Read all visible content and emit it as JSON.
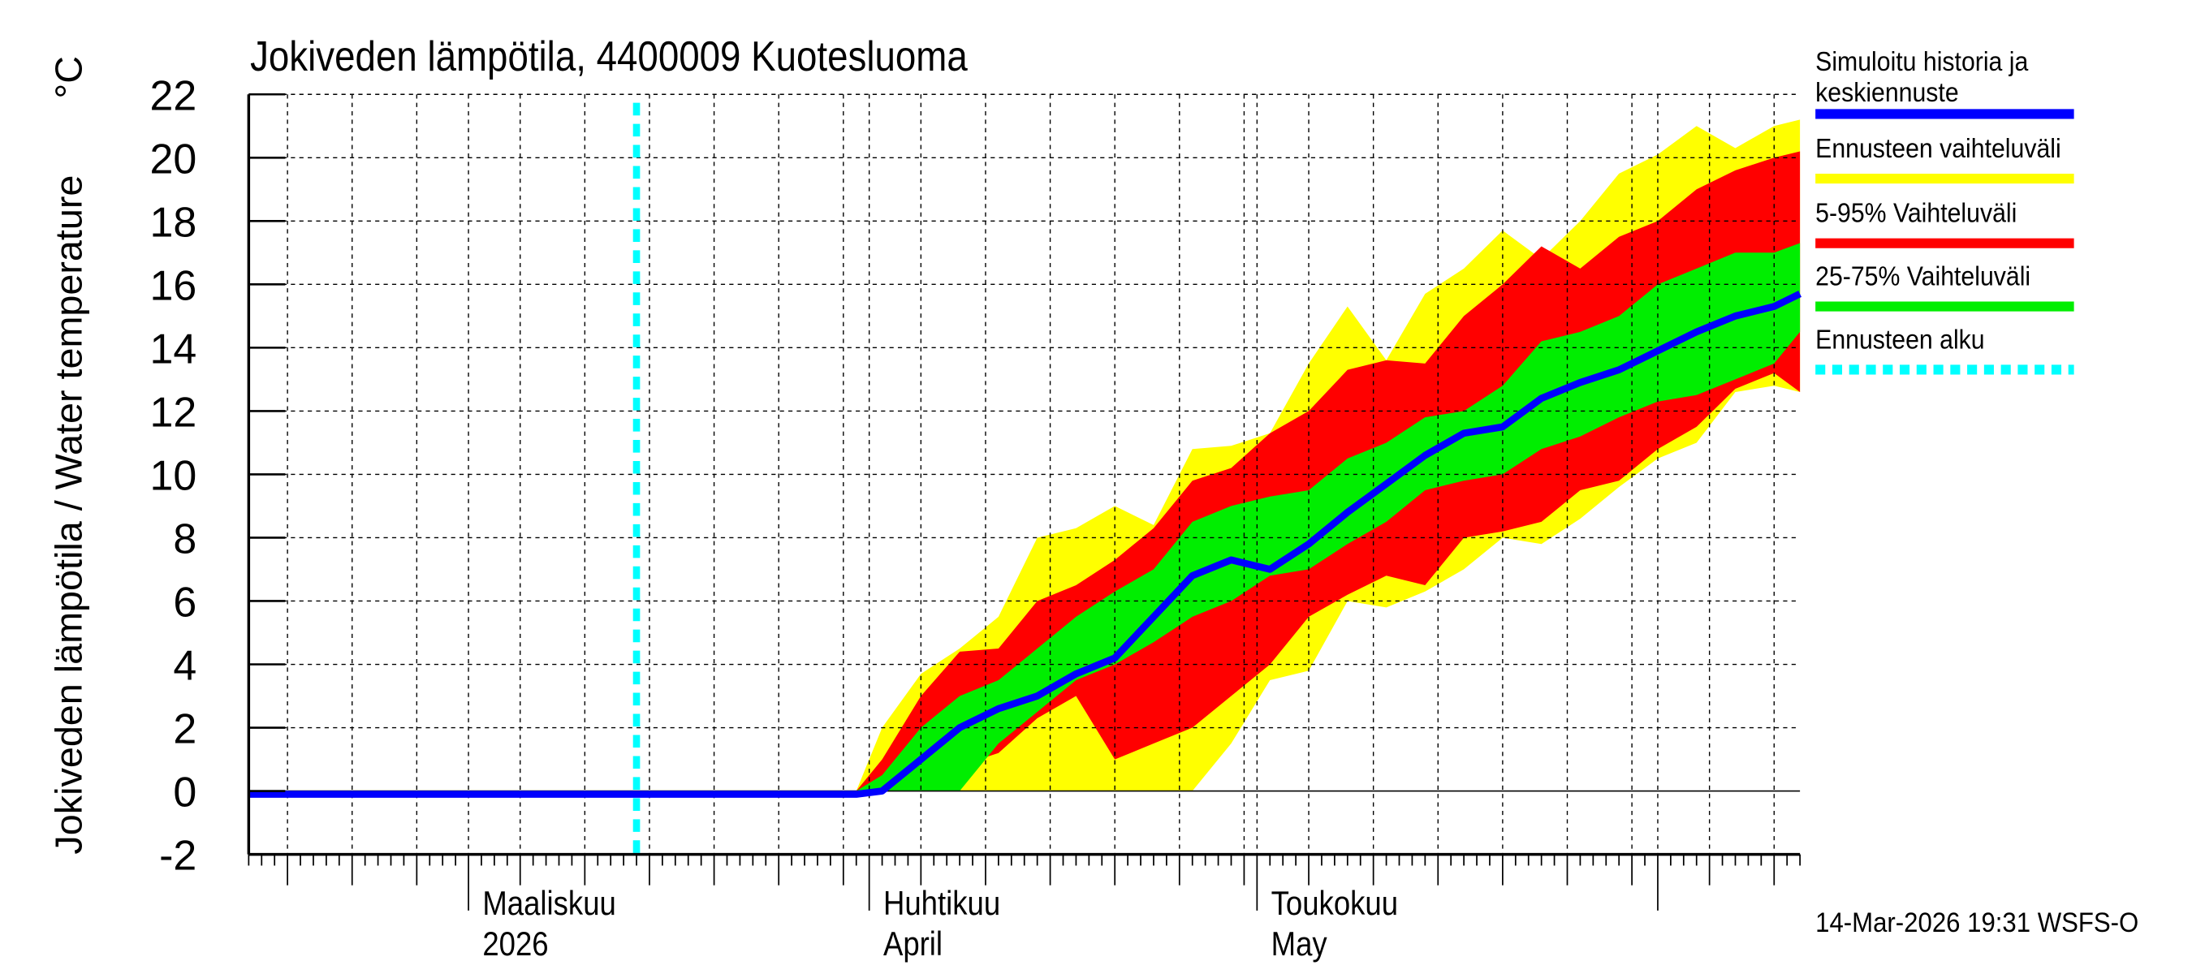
{
  "chart_data": {
    "type": "area",
    "title": "Jokiveden lämpötila, 4400009 Kuotesluoma",
    "ylabel": "Jokiveden lämpötila / Water temperature",
    "yunit": "°C",
    "ylim": [
      -2,
      22
    ],
    "yticks": [
      -2,
      0,
      2,
      4,
      6,
      8,
      10,
      12,
      14,
      16,
      18,
      20,
      22
    ],
    "xlim": [
      "2026-02-12",
      "2026-06-12"
    ],
    "grid": true,
    "legend_position": "right",
    "x_month_labels": [
      {
        "date": "2026-03-01",
        "line1": "Maaliskuu",
        "line2": "2026"
      },
      {
        "date": "2026-04-01",
        "line1": "Huhtikuu",
        "line2": "April"
      },
      {
        "date": "2026-05-01",
        "line1": "Toukokuu",
        "line2": "May"
      }
    ],
    "forecast_start": "2026-03-14",
    "footer": "14-Mar-2026 19:31 WSFS-O",
    "colors": {
      "median": "#0000ff",
      "range": "#ffff00",
      "p5_95": "#ff0000",
      "p25_75": "#00ee00",
      "forecast_start": "#00ffff"
    },
    "legend": [
      {
        "label": "Simuloitu historia ja keskiennuste",
        "color": "#0000ff",
        "style": "solid"
      },
      {
        "label": "Ennusteen vaihteluväli",
        "color": "#ffff00",
        "style": "solid"
      },
      {
        "label": "5-95% Vaihteluväli",
        "color": "#ff0000",
        "style": "solid"
      },
      {
        "label": "25-75% Vaihteluväli",
        "color": "#00ee00",
        "style": "solid"
      },
      {
        "label": "Ennusteen alku",
        "color": "#00ffff",
        "style": "dotted"
      }
    ],
    "x": [
      "2026-03-31",
      "2026-04-02",
      "2026-04-05",
      "2026-04-08",
      "2026-04-11",
      "2026-04-14",
      "2026-04-17",
      "2026-04-20",
      "2026-04-23",
      "2026-04-26",
      "2026-04-29",
      "2026-05-02",
      "2026-05-05",
      "2026-05-08",
      "2026-05-11",
      "2026-05-14",
      "2026-05-17",
      "2026-05-20",
      "2026-05-23",
      "2026-05-26",
      "2026-05-29",
      "2026-06-01",
      "2026-06-04",
      "2026-06-07",
      "2026-06-10",
      "2026-06-12"
    ],
    "range_upper": [
      0,
      2.0,
      3.7,
      4.5,
      5.5,
      8.0,
      8.3,
      9.0,
      8.4,
      10.8,
      10.9,
      11.3,
      13.5,
      15.3,
      13.6,
      15.7,
      16.5,
      17.7,
      16.8,
      18.0,
      19.5,
      20.1,
      21.0,
      20.3,
      21.0,
      21.2
    ],
    "range_lower": [
      0,
      0,
      0,
      0,
      0,
      0,
      0,
      0,
      0,
      0,
      1.5,
      3.5,
      3.8,
      6.0,
      5.8,
      6.3,
      7.0,
      8.0,
      7.8,
      8.6,
      9.6,
      10.5,
      11.0,
      12.6,
      12.8,
      12.6
    ],
    "p95": [
      0,
      1.0,
      3.0,
      4.4,
      4.5,
      6.0,
      6.5,
      7.3,
      8.3,
      9.8,
      10.2,
      11.3,
      12.0,
      13.3,
      13.6,
      13.5,
      15.0,
      16.0,
      17.2,
      16.5,
      17.5,
      18.0,
      19.0,
      19.6,
      20.0,
      20.2
    ],
    "p5": [
      0,
      0,
      0,
      0.8,
      1.2,
      2.3,
      3.0,
      1.0,
      1.5,
      2.0,
      3.0,
      4.0,
      5.5,
      6.2,
      6.8,
      6.5,
      8.0,
      8.2,
      8.5,
      9.5,
      9.8,
      10.8,
      11.5,
      12.7,
      13.2,
      12.6
    ],
    "p75": [
      0,
      0.5,
      2.0,
      3.0,
      3.5,
      4.5,
      5.5,
      6.3,
      7.0,
      8.5,
      9.0,
      9.3,
      9.5,
      10.5,
      11.0,
      11.8,
      12.0,
      12.8,
      14.2,
      14.5,
      15.0,
      16.0,
      16.5,
      17.0,
      17.0,
      17.3
    ],
    "p25": [
      0,
      0,
      0,
      0,
      1.5,
      2.5,
      3.5,
      4.0,
      4.7,
      5.5,
      6.0,
      6.8,
      7.0,
      7.8,
      8.5,
      9.5,
      9.8,
      10.0,
      10.8,
      11.2,
      11.8,
      12.3,
      12.5,
      13.0,
      13.5,
      14.5
    ],
    "median": [
      -0.1,
      0,
      1.0,
      2.0,
      2.6,
      3.0,
      3.7,
      4.2,
      5.5,
      6.8,
      7.3,
      7.0,
      7.8,
      8.8,
      9.7,
      10.6,
      11.3,
      11.5,
      12.4,
      12.9,
      13.3,
      13.9,
      14.5,
      15.0,
      15.3,
      15.7
    ],
    "history": {
      "x": [
        "2026-02-12",
        "2026-03-31"
      ],
      "values": [
        -0.1,
        -0.1
      ]
    }
  }
}
